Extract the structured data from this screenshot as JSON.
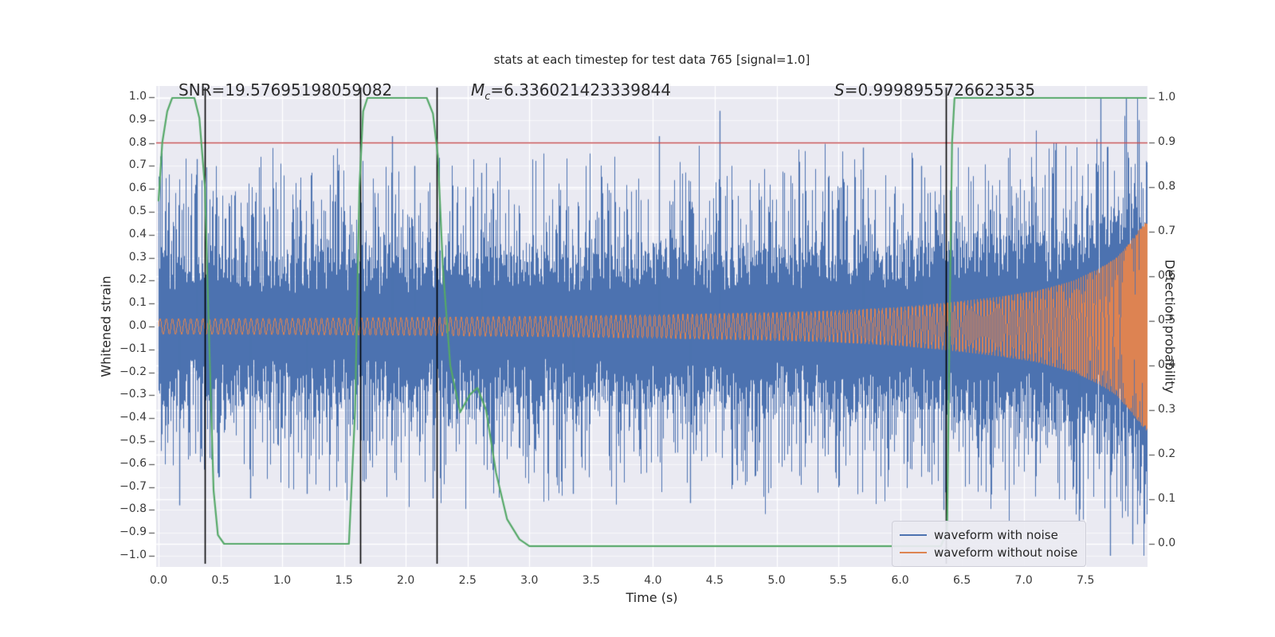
{
  "figure": {
    "title": "stats at each timestep for test data 765 [signal=1.0]"
  },
  "annotations": {
    "snr": "SNR=19.57695198059082",
    "mc": {
      "symbol": "M",
      "subscript": "c",
      "value": "=6.336021423339844"
    },
    "s": {
      "symbol": "S",
      "value": "=0.9998955726623535"
    }
  },
  "axes": {
    "x": {
      "label": "Time (s)",
      "min": 0.0,
      "max": 8.0,
      "tick_values": [
        0.0,
        0.5,
        1.0,
        1.5,
        2.0,
        2.5,
        3.0,
        3.5,
        4.0,
        4.5,
        5.0,
        5.5,
        6.0,
        6.5,
        7.0,
        7.5
      ],
      "tick_labels": [
        "0.0",
        "0.5",
        "1.0",
        "1.5",
        "2.0",
        "2.5",
        "3.0",
        "3.5",
        "4.0",
        "4.5",
        "5.0",
        "5.5",
        "6.0",
        "6.5",
        "7.0",
        "7.5"
      ]
    },
    "y_left": {
      "label": "Whitened strain",
      "min": -1.0,
      "max": 1.0,
      "tick_values": [
        1.0,
        0.9,
        0.8,
        0.7,
        0.6,
        0.5,
        0.4,
        0.3,
        0.2,
        0.1,
        0.0,
        -0.1,
        -0.2,
        -0.3,
        -0.4,
        -0.5,
        -0.6,
        -0.7,
        -0.8,
        -0.9,
        -1.0
      ],
      "tick_labels": [
        "1.0",
        "0.9",
        "0.8",
        "0.7",
        "0.6",
        "0.5",
        "0.4",
        "0.3",
        "0.2",
        "0.1",
        "0.0",
        "−0.1",
        "−0.2",
        "−0.3",
        "−0.4",
        "−0.5",
        "−0.6",
        "−0.7",
        "−0.8",
        "−0.9",
        "−1.0"
      ]
    },
    "y_right": {
      "label": "Detection probability",
      "min": 0.0,
      "max": 1.0,
      "tick_values": [
        1.0,
        0.9,
        0.8,
        0.7,
        0.6,
        0.5,
        0.4,
        0.3,
        0.2,
        0.1,
        0.0
      ],
      "tick_labels": [
        "1.0",
        "0.9",
        "0.8",
        "0.7",
        "0.6",
        "0.5",
        "0.4",
        "0.3",
        "0.2",
        "0.1",
        "0.0"
      ]
    }
  },
  "legend": {
    "items": [
      {
        "label": "waveform with noise",
        "color": "#4C72B0"
      },
      {
        "label": "waveform without noise",
        "color": "#DD8452"
      }
    ]
  },
  "colors": {
    "noise_blue": "#4C72B0",
    "signal_orange": "#DD8452",
    "probability_green": "#55A868",
    "threshold_red": "#C44E52",
    "marker_black": "#000000",
    "plot_background": "#eaeaf2",
    "grid_white": "#ffffff",
    "text": "#262626"
  },
  "chart_data": {
    "type": "line",
    "title": "stats at each timestep for test data 765 [signal=1.0]",
    "xlabel": "Time (s)",
    "ylabel_left": "Whitened strain",
    "ylabel_right": "Detection probability",
    "xlim": [
      0.0,
      8.0
    ],
    "ylim_left": [
      -1.05,
      1.05
    ],
    "ylim_right": [
      -0.05,
      1.03
    ],
    "grid": true,
    "threshold_line": {
      "axis": "right",
      "value": 0.9,
      "color": "#C44E52"
    },
    "event_marker_times": [
      0.375,
      1.63,
      2.25,
      6.37
    ],
    "detection_probability": {
      "axis": "right",
      "color": "#55A868",
      "points": [
        [
          0.0,
          0.77
        ],
        [
          0.03,
          0.9
        ],
        [
          0.07,
          0.97
        ],
        [
          0.11,
          1.0
        ],
        [
          0.29,
          1.0
        ],
        [
          0.33,
          0.955
        ],
        [
          0.375,
          0.8
        ],
        [
          0.41,
          0.45
        ],
        [
          0.445,
          0.12
        ],
        [
          0.48,
          0.02
        ],
        [
          0.53,
          0.0
        ],
        [
          1.54,
          0.0
        ],
        [
          1.59,
          0.3
        ],
        [
          1.625,
          0.8
        ],
        [
          1.655,
          0.97
        ],
        [
          1.69,
          1.0
        ],
        [
          2.17,
          1.0
        ],
        [
          2.22,
          0.965
        ],
        [
          2.26,
          0.87
        ],
        [
          2.3,
          0.62
        ],
        [
          2.36,
          0.4
        ],
        [
          2.44,
          0.295
        ],
        [
          2.52,
          0.335
        ],
        [
          2.58,
          0.35
        ],
        [
          2.65,
          0.3
        ],
        [
          2.73,
          0.16
        ],
        [
          2.82,
          0.055
        ],
        [
          2.92,
          0.01
        ],
        [
          3.0,
          -0.005
        ],
        [
          6.33,
          -0.005
        ],
        [
          6.38,
          0.03
        ],
        [
          6.405,
          0.6
        ],
        [
          6.42,
          0.9
        ],
        [
          6.44,
          1.0
        ],
        [
          7.99,
          1.0
        ]
      ]
    },
    "waveform_without_noise": {
      "axis": "left",
      "color": "#DD8452",
      "kind": "chirp",
      "frequency": {
        "f0_hz": 20,
        "t_coalescence_s": 8.06,
        "exponent": -0.375
      },
      "envelope_points": [
        [
          0.0,
          0.034
        ],
        [
          1.0,
          0.036
        ],
        [
          2.0,
          0.04
        ],
        [
          3.0,
          0.045
        ],
        [
          4.0,
          0.052
        ],
        [
          5.0,
          0.062
        ],
        [
          5.5,
          0.07
        ],
        [
          6.0,
          0.085
        ],
        [
          6.4,
          0.105
        ],
        [
          6.8,
          0.13
        ],
        [
          7.1,
          0.155
        ],
        [
          7.4,
          0.2
        ],
        [
          7.6,
          0.25
        ],
        [
          7.75,
          0.3
        ],
        [
          7.85,
          0.36
        ],
        [
          7.93,
          0.42
        ],
        [
          7.99,
          0.455
        ]
      ]
    },
    "waveform_with_noise": {
      "axis": "left",
      "color": "#4C72B0",
      "kind": "noise",
      "seed": 765,
      "core_halfwidth": 0.32,
      "typical_extreme": 0.55,
      "clip": 1.0,
      "notable_spikes": [
        [
          0.31,
          0.73
        ],
        [
          1.89,
          0.83
        ],
        [
          2.07,
          0.7
        ],
        [
          2.61,
          0.67
        ],
        [
          4.05,
          0.83
        ],
        [
          4.54,
          0.94
        ],
        [
          5.7,
          0.78
        ],
        [
          6.17,
          0.7
        ],
        [
          7.26,
          0.8
        ],
        [
          7.62,
          1.0
        ],
        [
          7.83,
          1.0
        ],
        [
          7.93,
          0.9
        ],
        [
          0.17,
          -0.78
        ],
        [
          0.74,
          -0.75
        ],
        [
          1.2,
          -0.73
        ],
        [
          2.22,
          -0.75
        ],
        [
          3.35,
          -0.73
        ],
        [
          4.3,
          -0.77
        ],
        [
          6.35,
          -0.8
        ],
        [
          7.45,
          -0.85
        ],
        [
          7.7,
          -1.0
        ],
        [
          7.88,
          -0.95
        ]
      ]
    }
  }
}
